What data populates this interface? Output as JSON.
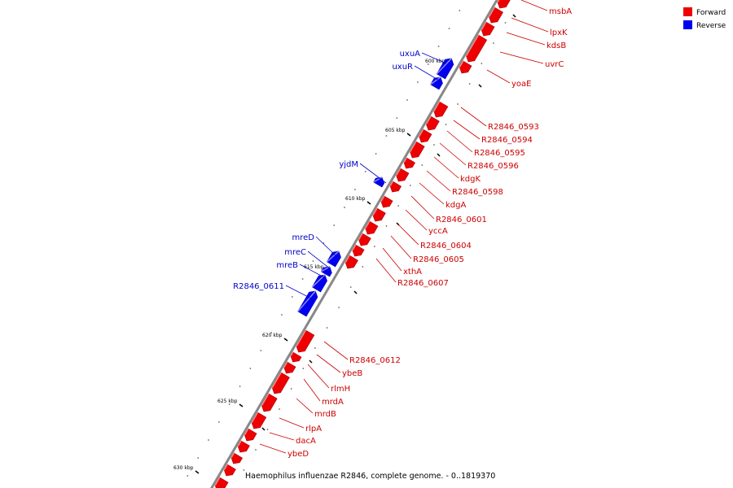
{
  "caption": "Haemophilus influenzae R2846, complete genome. - 0..1819370",
  "legend": [
    {
      "label": "Forward",
      "color": "#ee0000"
    },
    {
      "label": "Reverse",
      "color": "#0000ee"
    }
  ],
  "colors": {
    "forward": "#ee0000",
    "reverse": "#0000ee",
    "backbone": "#888888"
  },
  "ticks": [
    "600 kbp",
    "605 kbp",
    "610 kbp",
    "615 kbp",
    "620 kbp",
    "625 kbp",
    "630 kbp"
  ],
  "forward_labels": [
    "msbA",
    "lpxK",
    "kdsB",
    "uvrC",
    "yoaE",
    "R2846_0593",
    "R2846_0594",
    "R2846_0595",
    "R2846_0596",
    "kdgK",
    "R2846_0598",
    "kdgA",
    "R2846_0601",
    "yccA",
    "R2846_0604",
    "R2846_0605",
    "xthA",
    "R2846_0607",
    "R2846_0612",
    "ybeB",
    "rlmH",
    "mrdA",
    "mrdB",
    "rlpA",
    "dacA",
    "ybeD"
  ],
  "reverse_labels": [
    "uxuA",
    "uxuR",
    "yjdM",
    "mreD",
    "mreC",
    "mreB",
    "R2846_0611"
  ]
}
